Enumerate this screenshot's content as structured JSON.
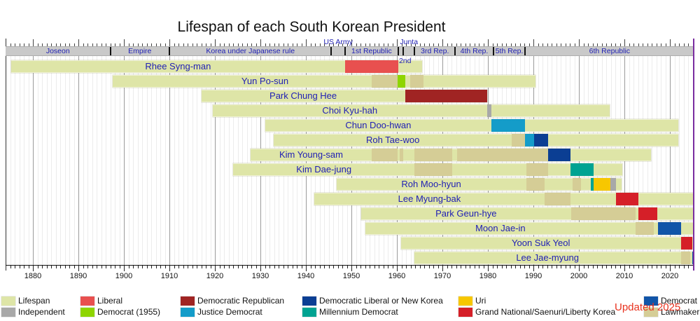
{
  "title": "Lifespan of each South Korean President",
  "updated_note": "Updated 2025",
  "chart_data": {
    "type": "timeline",
    "x_axis": {
      "min": 1874,
      "max": 2025.3,
      "minor_tick_step": 1,
      "major_tick_step": 10,
      "decade_labels": [
        "1880",
        "1890",
        "1900",
        "1910",
        "1920",
        "1930",
        "1940",
        "1950",
        "1960",
        "1970",
        "1980",
        "1990",
        "2000",
        "2010",
        "2020"
      ]
    },
    "now_marker": {
      "year": 2025.15,
      "color": "#7a2da0"
    },
    "palette": {
      "lifespan": "#dee5a7",
      "independent": "#a8a8a8",
      "liberal": "#e8504f",
      "democrat1955": "#8ed500",
      "demrep": "#a02423",
      "justice": "#149cc9",
      "demlib": "#0b3e93",
      "millennium": "#00a392",
      "uri": "#f7c700",
      "gnp": "#d51f28",
      "democrat": "#1155a8",
      "lawmaker": "#d5cd96",
      "era_bar": "#c9c9c9"
    },
    "eras": [
      {
        "label": "Joseon",
        "from": 1874,
        "to": 1897
      },
      {
        "label": "Empire",
        "from": 1897,
        "to": 1910
      },
      {
        "label": "Korea under Japanese rule",
        "from": 1910,
        "to": 1945.6
      },
      {
        "label": "US Army",
        "from": 1945.6,
        "to": 1948.6,
        "label_position": "above"
      },
      {
        "label": "1st Republic",
        "from": 1948.6,
        "to": 1960.3
      },
      {
        "label": "2nd",
        "from": 1960.3,
        "to": 1961.4,
        "label_position": "below"
      },
      {
        "label": "Junta",
        "from": 1961.4,
        "to": 1963.9,
        "label_position": "above"
      },
      {
        "label": "3rd Rep.",
        "from": 1963.9,
        "to": 1972.8
      },
      {
        "label": "4th Rep.",
        "from": 1972.8,
        "to": 1981.2
      },
      {
        "label": "5th Rep.",
        "from": 1981.2,
        "to": 1988.2
      },
      {
        "label": "6th Republic",
        "from": 1988.2,
        "to": 2025.3
      }
    ],
    "presidents": [
      {
        "name": "Rhee Syng-man",
        "life": [
          1875.2,
          1965.6
        ],
        "segments": [
          {
            "party": "liberal",
            "from": 1948.6,
            "to": 1960.3
          }
        ]
      },
      {
        "name": "Yun Po-sun",
        "life": [
          1897.6,
          1990.5
        ],
        "label_center_year": 1931,
        "segments": [
          {
            "party": "lawmaker",
            "from": 1954.4,
            "to": 1960.2
          },
          {
            "party": "democrat1955",
            "from": 1960.2,
            "to": 1961.9
          },
          {
            "party": "lawmaker",
            "from": 1963.0,
            "to": 1965.8
          }
        ]
      },
      {
        "name": "Park Chung Hee",
        "life": [
          1917.0,
          1979.8
        ],
        "segments": [
          {
            "party": "demrep",
            "from": 1961.8,
            "to": 1979.8
          }
        ]
      },
      {
        "name": "Choi Kyu-hah",
        "life": [
          1919.5,
          2006.8
        ],
        "segments": [
          {
            "party": "independent",
            "from": 1979.8,
            "to": 1980.7
          }
        ]
      },
      {
        "name": "Chun Doo-hwan",
        "life": [
          1931.1,
          2021.9
        ],
        "segments": [
          {
            "party": "justice",
            "from": 1980.7,
            "to": 1988.2
          }
        ]
      },
      {
        "name": "Roh Tae-woo",
        "life": [
          1932.9,
          2021.8
        ],
        "segments": [
          {
            "party": "lawmaker",
            "from": 1985.3,
            "to": 1988.1
          },
          {
            "party": "justice",
            "from": 1988.1,
            "to": 1990.1
          },
          {
            "party": "demlib",
            "from": 1990.1,
            "to": 1993.2
          }
        ]
      },
      {
        "name": "Kim Young-sam",
        "life": [
          1927.9,
          2015.9
        ],
        "segments": [
          {
            "party": "lawmaker",
            "from": 1954.4,
            "to": 1960.2
          },
          {
            "party": "lawmaker",
            "from": 1960.6,
            "to": 1961.4
          },
          {
            "party": "lawmaker",
            "from": 1963.9,
            "to": 1972.2
          },
          {
            "party": "lawmaker",
            "from": 1973.2,
            "to": 1993.2
          },
          {
            "party": "demlib",
            "from": 1993.2,
            "to": 1998.2
          }
        ]
      },
      {
        "name": "Kim Dae-jung",
        "life": [
          1924.0,
          2009.6
        ],
        "segments": [
          {
            "party": "lawmaker",
            "from": 1963.9,
            "to": 1972.2
          },
          {
            "party": "lawmaker",
            "from": 1988.4,
            "to": 1993.2
          },
          {
            "party": "millennium",
            "from": 1998.2,
            "to": 2003.2
          }
        ]
      },
      {
        "name": "Roh Moo-hyun",
        "life": [
          1946.7,
          2009.4
        ],
        "segments": [
          {
            "party": "lawmaker",
            "from": 1988.4,
            "to": 1992.4
          },
          {
            "party": "lawmaker",
            "from": 1998.6,
            "to": 2000.4
          },
          {
            "party": "millennium",
            "from": 2002.6,
            "to": 2003.3
          },
          {
            "party": "uri",
            "from": 2003.3,
            "to": 2006.9
          },
          {
            "party": "independent",
            "from": 2006.9,
            "to": 2008.2
          }
        ]
      },
      {
        "name": "Lee Myung-bak",
        "life": [
          1941.9,
          2025.2
        ],
        "segments": [
          {
            "party": "lawmaker",
            "from": 1992.4,
            "to": 1998.2
          },
          {
            "party": "gnp",
            "from": 2008.2,
            "to": 2013.1
          }
        ]
      },
      {
        "name": "Park Geun-hye",
        "life": [
          1952.1,
          2025.2
        ],
        "segments": [
          {
            "party": "lawmaker",
            "from": 1998.3,
            "to": 2012.4
          },
          {
            "party": "gnp",
            "from": 2013.1,
            "to": 2017.2
          }
        ]
      },
      {
        "name": "Moon Jae-in",
        "life": [
          1953.1,
          2025.2
        ],
        "segments": [
          {
            "party": "lawmaker",
            "from": 2012.4,
            "to": 2016.4
          },
          {
            "party": "democrat",
            "from": 2017.4,
            "to": 2022.4
          }
        ]
      },
      {
        "name": "Yoon Suk Yeol",
        "life": [
          1960.9,
          2025.2
        ],
        "segments": [
          {
            "party": "gnp",
            "from": 2022.4,
            "to": 2024.9
          }
        ]
      },
      {
        "name": "Lee Jae-myung",
        "life": [
          1963.8,
          2025.2
        ],
        "segments": [
          {
            "party": "lawmaker",
            "from": 2022.4,
            "to": 2024.4
          },
          {
            "party": "democrat",
            "from": 2024.9,
            "to": 2025.2
          }
        ]
      }
    ],
    "legend": [
      {
        "label": "Lifespan",
        "party": "lifespan",
        "column": 0,
        "row": 0
      },
      {
        "label": "Independent",
        "party": "independent",
        "column": 0,
        "row": 1
      },
      {
        "label": "Liberal",
        "party": "liberal",
        "column": 1,
        "row": 0
      },
      {
        "label": "Democrat (1955)",
        "party": "democrat1955",
        "column": 1,
        "row": 1
      },
      {
        "label": "Democratic Republican",
        "party": "demrep",
        "column": 2,
        "row": 0
      },
      {
        "label": "Justice Democrat",
        "party": "justice",
        "column": 2,
        "row": 1
      },
      {
        "label": "Democratic Liberal or New Korea",
        "party": "demlib",
        "column": 3,
        "row": 0
      },
      {
        "label": "Millennium Democrat",
        "party": "millennium",
        "column": 3,
        "row": 1
      },
      {
        "label": "Uri",
        "party": "uri",
        "column": 4,
        "row": 0
      },
      {
        "label": "Grand National/Saenuri/Liberty Korea",
        "party": "gnp",
        "column": 4,
        "row": 1
      },
      {
        "label": "Democrat",
        "party": "democrat",
        "column": 5,
        "row": 0
      },
      {
        "label": "Lawmaker",
        "party": "lawmaker",
        "column": 5,
        "row": 1
      }
    ]
  }
}
